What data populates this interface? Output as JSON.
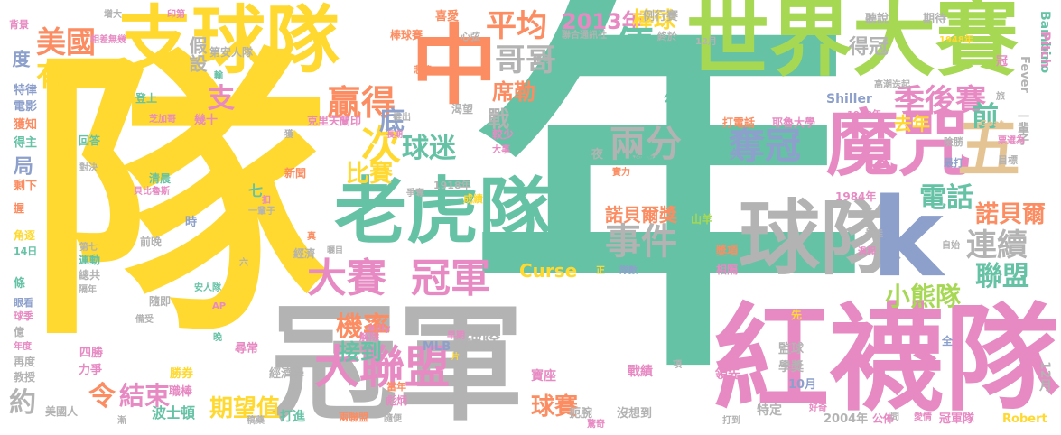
{
  "palette": {
    "green": "#66c2a5",
    "orange": "#fc8d62",
    "blue": "#8da0cb",
    "pink": "#e78ac3",
    "lime": "#a6d854",
    "yellow": "#ffd92f",
    "tan": "#e5c494",
    "gray": "#b3b3b3"
  },
  "words": [
    {
      "text": "年",
      "c": "green"
    },
    {
      "text": "隊",
      "c": "yellow"
    },
    {
      "text": "冠軍",
      "c": "gray"
    },
    {
      "text": "紅襪隊",
      "c": "pink"
    },
    {
      "text": "世界大賽",
      "c": "lime"
    },
    {
      "text": "球隊",
      "c": "gray"
    },
    {
      "text": "支球隊",
      "c": "yellow"
    },
    {
      "text": "老虎隊",
      "c": "green"
    },
    {
      "text": "魔咒",
      "c": "pink"
    },
    {
      "text": "中",
      "c": "orange"
    },
    {
      "text": "k",
      "c": "blue"
    },
    {
      "text": "五",
      "c": "tan"
    },
    {
      "text": "大聯盟",
      "c": "pink"
    },
    {
      "text": "冠軍",
      "c": "pink"
    },
    {
      "text": "大賽",
      "c": "pink"
    },
    {
      "text": "奪冠",
      "c": "blue"
    },
    {
      "text": "事件",
      "c": "gray"
    },
    {
      "text": "兩分",
      "c": "gray"
    },
    {
      "text": "有趣",
      "c": "yellow"
    },
    {
      "text": "美國",
      "c": "orange"
    },
    {
      "text": "贏得",
      "c": "orange"
    },
    {
      "text": "哥哥",
      "c": "gray"
    },
    {
      "text": "平均",
      "c": "orange"
    },
    {
      "text": "2013年",
      "c": "pink"
    },
    {
      "text": "季後賽",
      "c": "pink"
    },
    {
      "text": "連續",
      "c": "gray"
    },
    {
      "text": "電話",
      "c": "green"
    },
    {
      "text": "諾貝爾",
      "c": "orange"
    },
    {
      "text": "聯盟",
      "c": "green"
    },
    {
      "text": "小熊隊",
      "c": "lime"
    },
    {
      "text": "機率",
      "c": "orange"
    },
    {
      "text": "令",
      "c": "orange"
    },
    {
      "text": "結束",
      "c": "pink"
    },
    {
      "text": "接到",
      "c": "green"
    },
    {
      "text": "球迷",
      "c": "green"
    },
    {
      "text": "比賽",
      "c": "yellow"
    },
    {
      "text": "諾貝爾獎",
      "c": "orange"
    },
    {
      "text": "期望值",
      "c": "yellow"
    },
    {
      "text": "球賽",
      "c": "orange"
    },
    {
      "text": "席勒",
      "c": "orange"
    },
    {
      "text": "戰",
      "c": "gray"
    },
    {
      "text": "棒球",
      "c": "yellow"
    },
    {
      "text": "便",
      "c": "green"
    },
    {
      "text": "次",
      "c": "yellow"
    },
    {
      "text": "底",
      "c": "blue"
    },
    {
      "text": "前",
      "c": "green"
    },
    {
      "text": "去年",
      "c": "yellow"
    },
    {
      "text": "得冠",
      "c": "gray"
    },
    {
      "text": "約",
      "c": "gray"
    },
    {
      "text": "支",
      "c": "pink"
    },
    {
      "text": "破除",
      "c": "gray"
    },
    {
      "text": "Curse",
      "c": "yellow"
    },
    {
      "text": "局",
      "c": "blue"
    },
    {
      "text": "度",
      "c": "blue"
    },
    {
      "text": "假設",
      "c": "gray"
    },
    {
      "text": "美國人",
      "c": "gray"
    },
    {
      "text": "波士頓",
      "c": "green"
    },
    {
      "text": "打進",
      "c": "green"
    },
    {
      "text": "寶座",
      "c": "pink"
    },
    {
      "text": "戰績",
      "c": "pink"
    },
    {
      "text": "領先",
      "c": "pink"
    },
    {
      "text": "學獎",
      "c": "gray"
    },
    {
      "text": "10月",
      "c": "blue"
    },
    {
      "text": "2004年",
      "c": "gray"
    },
    {
      "text": "公佈",
      "c": "pink"
    },
    {
      "text": "冠軍隊",
      "c": "pink"
    },
    {
      "text": "Robert",
      "c": "yellow"
    },
    {
      "text": "Shiller",
      "c": "blue"
    },
    {
      "text": "耶魯大學",
      "c": "pink"
    },
    {
      "text": "打電話",
      "c": "orange"
    },
    {
      "text": "1984年",
      "c": "pink"
    },
    {
      "text": "1908年",
      "c": "pink"
    },
    {
      "text": "例行賽",
      "c": "gray"
    },
    {
      "text": "聽說",
      "c": "gray"
    },
    {
      "text": "期待",
      "c": "gray"
    },
    {
      "text": "喜愛",
      "c": "orange"
    },
    {
      "text": "棒球賽",
      "c": "orange"
    },
    {
      "text": "MLB",
      "c": "blue"
    },
    {
      "text": "經濟學",
      "c": "gray"
    },
    {
      "text": "監球",
      "c": "gray"
    },
    {
      "text": "特定",
      "c": "gray"
    },
    {
      "text": "沒想到",
      "c": "gray"
    },
    {
      "text": "扼腕",
      "c": "gray"
    },
    {
      "text": "兩聯盟",
      "c": "orange"
    },
    {
      "text": "彪炳",
      "c": "pink"
    },
    {
      "text": "當年",
      "c": "orange"
    },
    {
      "text": "勝券",
      "c": "yellow"
    },
    {
      "text": "職棒",
      "c": "pink"
    },
    {
      "text": "四勝",
      "c": "pink"
    },
    {
      "text": "力爭",
      "c": "pink"
    },
    {
      "text": "教授",
      "c": "gray"
    },
    {
      "text": "再度",
      "c": "gray"
    },
    {
      "text": "年度",
      "c": "pink"
    },
    {
      "text": "球季",
      "c": "pink"
    },
    {
      "text": "眼看",
      "c": "blue"
    },
    {
      "text": "條",
      "c": "green"
    },
    {
      "text": "角逐",
      "c": "yellow"
    },
    {
      "text": "14日",
      "c": "green"
    },
    {
      "text": "剩下",
      "c": "orange"
    },
    {
      "text": "得主",
      "c": "green"
    },
    {
      "text": "獲知",
      "c": "orange"
    },
    {
      "text": "電影",
      "c": "blue"
    },
    {
      "text": "特律",
      "c": "blue"
    },
    {
      "text": "背景",
      "c": "pink"
    },
    {
      "text": "握",
      "c": "orange"
    },
    {
      "text": "運動",
      "c": "green"
    },
    {
      "text": "總共",
      "c": "gray"
    },
    {
      "text": "隔年",
      "c": "gray"
    },
    {
      "text": "隨即",
      "c": "gray"
    },
    {
      "text": "前晚",
      "c": "gray"
    },
    {
      "text": "清晨",
      "c": "green"
    },
    {
      "text": "對決",
      "c": "gray"
    },
    {
      "text": "回答",
      "c": "green"
    },
    {
      "text": "幾十",
      "c": "pink"
    },
    {
      "text": "登上",
      "c": "green"
    },
    {
      "text": "七",
      "c": "green"
    },
    {
      "text": "時",
      "c": "blue"
    },
    {
      "text": "新聞",
      "c": "orange"
    },
    {
      "text": "爭奪",
      "c": "gray"
    },
    {
      "text": "經濟",
      "c": "gray"
    },
    {
      "text": "1918年",
      "c": "gray"
    },
    {
      "text": "成績",
      "c": "yellow"
    },
    {
      "text": "渴望",
      "c": "gray"
    },
    {
      "text": "悲情",
      "c": "orange"
    },
    {
      "text": "心弦",
      "c": "gray"
    },
    {
      "text": "聯合通訊社",
      "c": "gray"
    },
    {
      "text": "終於",
      "c": "gray"
    },
    {
      "text": "例",
      "c": "green"
    },
    {
      "text": "公司",
      "c": "green"
    },
    {
      "text": "夜",
      "c": "gray"
    },
    {
      "text": "久",
      "c": "blue"
    },
    {
      "text": "經濟系",
      "c": "green"
    },
    {
      "text": "相隔",
      "c": "pink"
    },
    {
      "text": "獎項",
      "c": "orange"
    },
    {
      "text": "最佳",
      "c": "gray"
    },
    {
      "text": "目標",
      "c": "gray"
    },
    {
      "text": "險勝",
      "c": "gray"
    },
    {
      "text": "票選為",
      "c": "pink"
    },
    {
      "text": "Goat",
      "c": "tan"
    },
    {
      "text": "腦海",
      "c": "blue"
    },
    {
      "text": "弟弟",
      "c": "green"
    },
    {
      "text": "非",
      "c": "gray"
    },
    {
      "text": "冠",
      "c": "pink"
    },
    {
      "text": "Fever",
      "c": "gray"
    },
    {
      "text": "Bambino",
      "c": "green"
    },
    {
      "text": "Pitch",
      "c": "pink"
    },
    {
      "text": "Billy",
      "c": "pink"
    },
    {
      "text": "AP",
      "c": "pink"
    },
    {
      "text": "一輩子",
      "c": "gray"
    },
    {
      "text": "安人隊",
      "c": "green"
    },
    {
      "text": "貝比魯斯",
      "c": "pink"
    },
    {
      "text": "解除",
      "c": "pink"
    },
    {
      "text": "項",
      "c": "gray"
    },
    {
      "text": "先",
      "c": "yellow"
    },
    {
      "text": "差",
      "c": "pink"
    },
    {
      "text": "全",
      "c": "blue"
    },
    {
      "text": "換成",
      "c": "yellow"
    },
    {
      "text": "山羊",
      "c": "lime"
    },
    {
      "text": "過程",
      "c": "pink"
    },
    {
      "text": "自始",
      "c": "gray"
    },
    {
      "text": "12月",
      "c": "gray"
    },
    {
      "text": "1948年",
      "c": "yellow"
    },
    {
      "text": "旅",
      "c": "gray"
    },
    {
      "text": "高潮迭起",
      "c": "gray"
    },
    {
      "text": "最打",
      "c": "blue"
    },
    {
      "text": "隊數",
      "c": "blue"
    },
    {
      "text": "正",
      "c": "yellow"
    },
    {
      "text": "第七",
      "c": "gray"
    },
    {
      "text": "較少",
      "c": "pink"
    },
    {
      "text": "大事",
      "c": "pink"
    },
    {
      "text": "實力",
      "c": "orange"
    },
    {
      "text": "扣",
      "c": "pink"
    },
    {
      "text": "芝加哥",
      "c": "pink"
    },
    {
      "text": "克里夫蘭印",
      "c": "pink"
    },
    {
      "text": "獲",
      "c": "gray"
    },
    {
      "text": "長期",
      "c": "pink"
    },
    {
      "text": "推出",
      "c": "gray"
    },
    {
      "text": "輸",
      "c": "green"
    },
    {
      "text": "相差無幾",
      "c": "pink"
    },
    {
      "text": "第安人隊",
      "c": "gray"
    },
    {
      "text": "增大",
      "c": "gray"
    },
    {
      "text": "印第",
      "c": "pink"
    },
    {
      "text": "體育",
      "c": "gray"
    },
    {
      "text": "稿藥",
      "c": "gray"
    },
    {
      "text": "驚奇",
      "c": "pink"
    },
    {
      "text": "打到",
      "c": "gray"
    },
    {
      "text": "問",
      "c": "gray"
    },
    {
      "text": "愛情",
      "c": "pink"
    },
    {
      "text": "好奇",
      "c": "pink"
    },
    {
      "text": "隨便",
      "c": "gray"
    },
    {
      "text": "早期",
      "c": "pink"
    },
    {
      "text": "片",
      "c": "yellow"
    },
    {
      "text": "晚",
      "c": "green"
    },
    {
      "text": "備受",
      "c": "gray"
    },
    {
      "text": "尋常",
      "c": "pink"
    },
    {
      "text": "真",
      "c": "orange"
    },
    {
      "text": "曬目",
      "c": "gray"
    },
    {
      "text": "六",
      "c": "gray"
    },
    {
      "text": "漸",
      "c": "gray"
    },
    {
      "text": "億",
      "c": "gray"
    }
  ]
}
